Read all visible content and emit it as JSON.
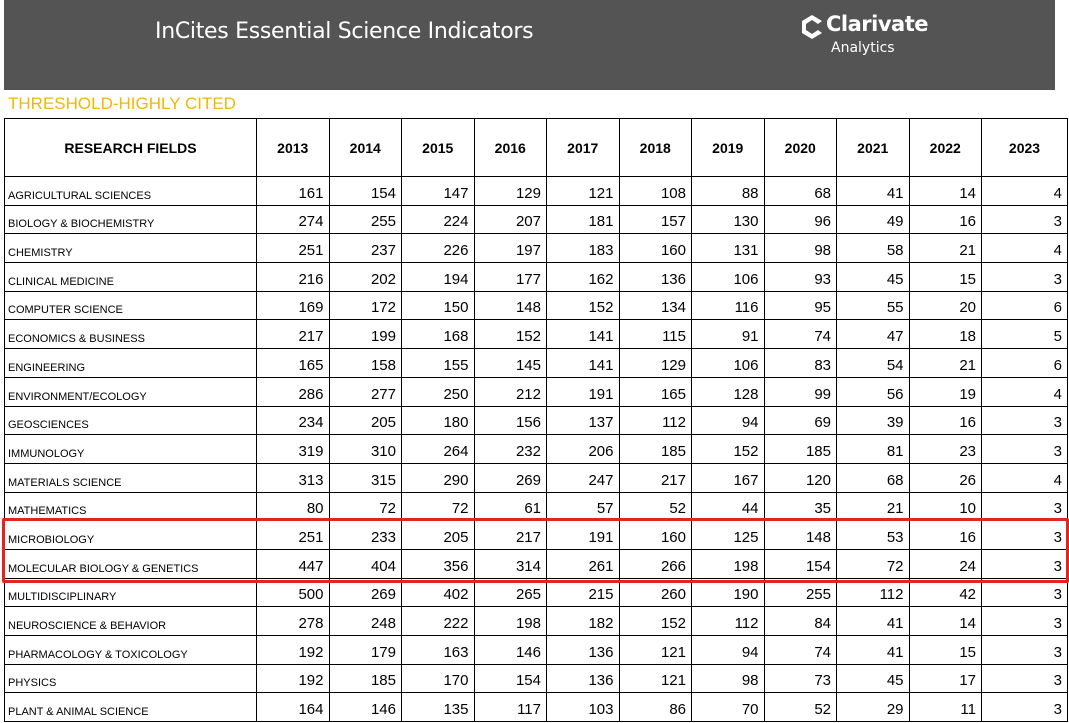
{
  "header": {
    "title": "InCites Essential Science Indicators",
    "logo_name": "Clarivate",
    "logo_sub": "Analytics"
  },
  "subtitle": "THRESHOLD-HIGHLY CITED",
  "table": {
    "columns": [
      "RESEARCH FIELDS",
      "2013",
      "2014",
      "2015",
      "2016",
      "2017",
      "2018",
      "2019",
      "2020",
      "2021",
      "2022",
      "2023"
    ],
    "rows": [
      {
        "field": "AGRICULTURAL SCIENCES",
        "values": [
          161,
          154,
          147,
          129,
          121,
          108,
          88,
          68,
          41,
          14,
          4
        ]
      },
      {
        "field": "BIOLOGY & BIOCHEMISTRY",
        "values": [
          274,
          255,
          224,
          207,
          181,
          157,
          130,
          96,
          49,
          16,
          3
        ]
      },
      {
        "field": "CHEMISTRY",
        "values": [
          251,
          237,
          226,
          197,
          183,
          160,
          131,
          98,
          58,
          21,
          4
        ]
      },
      {
        "field": "CLINICAL MEDICINE",
        "values": [
          216,
          202,
          194,
          177,
          162,
          136,
          106,
          93,
          45,
          15,
          3
        ]
      },
      {
        "field": "COMPUTER SCIENCE",
        "values": [
          169,
          172,
          150,
          148,
          152,
          134,
          116,
          95,
          55,
          20,
          6
        ]
      },
      {
        "field": "ECONOMICS & BUSINESS",
        "values": [
          217,
          199,
          168,
          152,
          141,
          115,
          91,
          74,
          47,
          18,
          5
        ]
      },
      {
        "field": "ENGINEERING",
        "values": [
          165,
          158,
          155,
          145,
          141,
          129,
          106,
          83,
          54,
          21,
          6
        ]
      },
      {
        "field": "ENVIRONMENT/ECOLOGY",
        "values": [
          286,
          277,
          250,
          212,
          191,
          165,
          128,
          99,
          56,
          19,
          4
        ]
      },
      {
        "field": "GEOSCIENCES",
        "values": [
          234,
          205,
          180,
          156,
          137,
          112,
          94,
          69,
          39,
          16,
          3
        ]
      },
      {
        "field": "IMMUNOLOGY",
        "values": [
          319,
          310,
          264,
          232,
          206,
          185,
          152,
          185,
          81,
          23,
          3
        ]
      },
      {
        "field": "MATERIALS SCIENCE",
        "values": [
          313,
          315,
          290,
          269,
          247,
          217,
          167,
          120,
          68,
          26,
          4
        ]
      },
      {
        "field": "MATHEMATICS",
        "values": [
          80,
          72,
          72,
          61,
          57,
          52,
          44,
          35,
          21,
          10,
          3
        ]
      },
      {
        "field": "MICROBIOLOGY",
        "values": [
          251,
          233,
          205,
          217,
          191,
          160,
          125,
          148,
          53,
          16,
          3
        ]
      },
      {
        "field": "MOLECULAR BIOLOGY & GENETICS",
        "values": [
          447,
          404,
          356,
          314,
          261,
          266,
          198,
          154,
          72,
          24,
          3
        ]
      },
      {
        "field": "MULTIDISCIPLINARY",
        "values": [
          500,
          269,
          402,
          265,
          215,
          260,
          190,
          255,
          112,
          42,
          3
        ]
      },
      {
        "field": "NEUROSCIENCE & BEHAVIOR",
        "values": [
          278,
          248,
          222,
          198,
          182,
          152,
          112,
          84,
          41,
          14,
          3
        ]
      },
      {
        "field": "PHARMACOLOGY & TOXICOLOGY",
        "values": [
          192,
          179,
          163,
          146,
          136,
          121,
          94,
          74,
          41,
          15,
          3
        ]
      },
      {
        "field": "PHYSICS",
        "values": [
          192,
          185,
          170,
          154,
          136,
          121,
          98,
          73,
          45,
          17,
          3
        ]
      },
      {
        "field": "PLANT & ANIMAL SCIENCE",
        "values": [
          164,
          146,
          135,
          117,
          103,
          86,
          70,
          52,
          29,
          11,
          3
        ]
      }
    ]
  }
}
